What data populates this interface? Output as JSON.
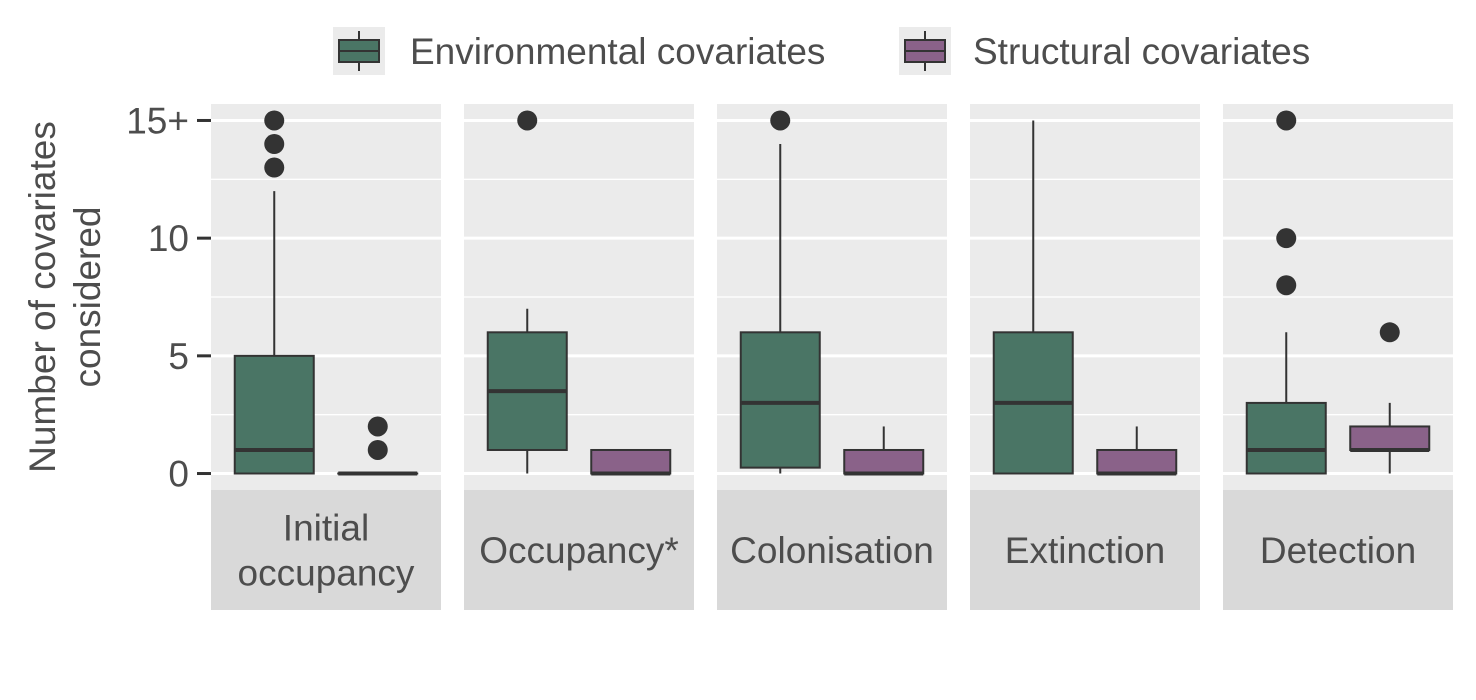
{
  "chart_data": {
    "type": "box",
    "ylabel_lines": [
      "Number of covariates",
      "considered"
    ],
    "y_ticks": [
      {
        "value": 0,
        "label": "0"
      },
      {
        "value": 5,
        "label": "5"
      },
      {
        "value": 10,
        "label": "10"
      },
      {
        "value": 15,
        "label": "15+"
      }
    ],
    "ylim": [
      -0.7,
      15.7
    ],
    "legend": {
      "placement": "top",
      "entries": [
        {
          "key": "env",
          "label": "Environmental covariates"
        },
        {
          "key": "str",
          "label": "Structural covariates"
        }
      ]
    },
    "colors": {
      "env": "#4a7565",
      "str": "#8a6289",
      "outline": "#333333",
      "panel_bg": "#ebebeb",
      "strip_bg": "#d9d9d9",
      "grid": "#ffffff",
      "text": "#4d4d4d"
    },
    "panels": [
      {
        "label_lines": [
          "Initial",
          "occupancy"
        ],
        "boxes": [
          {
            "series": "env",
            "min": 0,
            "q1": 0,
            "median": 1,
            "q3": 5,
            "max": 12,
            "outliers": [
              13,
              14,
              15
            ]
          },
          {
            "series": "str",
            "min": 0,
            "q1": 0,
            "median": 0,
            "q3": 0,
            "max": 0,
            "outliers": [
              1,
              2
            ]
          }
        ]
      },
      {
        "label_lines": [
          "Occupancy*"
        ],
        "boxes": [
          {
            "series": "env",
            "min": 0,
            "q1": 1,
            "median": 3.5,
            "q3": 6,
            "max": 7,
            "outliers": [
              15
            ]
          },
          {
            "series": "str",
            "min": 0,
            "q1": 0,
            "median": 0,
            "q3": 1,
            "max": 1,
            "outliers": []
          }
        ]
      },
      {
        "label_lines": [
          "Colonisation"
        ],
        "boxes": [
          {
            "series": "env",
            "min": 0,
            "q1": 0.25,
            "median": 3,
            "q3": 6,
            "max": 14,
            "outliers": [
              15
            ]
          },
          {
            "series": "str",
            "min": 0,
            "q1": 0,
            "median": 0,
            "q3": 1,
            "max": 2,
            "outliers": []
          }
        ]
      },
      {
        "label_lines": [
          "Extinction"
        ],
        "boxes": [
          {
            "series": "env",
            "min": 0,
            "q1": 0,
            "median": 3,
            "q3": 6,
            "max": 15,
            "outliers": []
          },
          {
            "series": "str",
            "min": 0,
            "q1": 0,
            "median": 0,
            "q3": 1,
            "max": 2,
            "outliers": []
          }
        ]
      },
      {
        "label_lines": [
          "Detection"
        ],
        "boxes": [
          {
            "series": "env",
            "min": 0,
            "q1": 0,
            "median": 1,
            "q3": 3,
            "max": 6,
            "outliers": [
              8,
              10,
              15
            ]
          },
          {
            "series": "str",
            "min": 0,
            "q1": 1,
            "median": 1,
            "q3": 2,
            "max": 3,
            "outliers": [
              6
            ]
          }
        ]
      }
    ]
  }
}
